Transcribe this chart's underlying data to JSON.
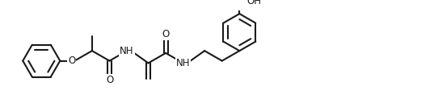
{
  "background": "#ffffff",
  "line_color": "#1a1a1a",
  "line_width": 1.5,
  "font_size": 8.5,
  "figsize": [
    5.42,
    1.38
  ],
  "dpi": 100,
  "xlim": [
    0.0,
    10.8
  ],
  "ylim": [
    0.0,
    2.6
  ]
}
